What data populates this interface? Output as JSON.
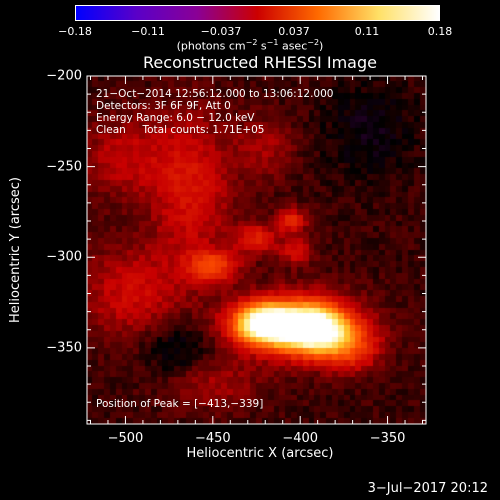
{
  "colorbar": {
    "ticks": [
      "−0.18",
      "−0.11",
      "−0.037",
      "0.037",
      "0.11",
      "0.18"
    ],
    "units_prefix": "(photons cm",
    "units_exp1": "−2",
    "units_mid": " s",
    "units_exp2": "−1",
    "units_mid2": " asec",
    "units_exp3": "−2",
    "units_suffix": ")",
    "colors": [
      "#0000ff",
      "#5a00c8",
      "#8a0096",
      "#cc0000",
      "#ff6a00",
      "#ffe066",
      "#ffffff"
    ]
  },
  "annotations": {
    "line1": "21−Oct−2014 12:56:12.000 to 13:06:12.000",
    "line2": "Detectors: 3F 6F 9F, Att 0",
    "line3": "Energy Range: 6.0 − 12.0 keV",
    "line4": "Clean     Total counts: 1.71E+05",
    "peak": "Position of Peak = [−413,−339]"
  },
  "datestamp": "3−Jul−2017 20:12",
  "chart_data": {
    "type": "heatmap",
    "title": "Reconstructed RHESSI Image",
    "xlabel": "Heliocentric X (arcsec)",
    "ylabel": "Heliocentric Y (arcsec)",
    "xlim": [
      -522,
      -328
    ],
    "ylim": [
      -392,
      -200
    ],
    "x_ticks": [
      "−500",
      "−450",
      "−400",
      "−350"
    ],
    "x_tick_values": [
      -500,
      -450,
      -400,
      -350
    ],
    "y_ticks": [
      "−200",
      "−250",
      "−300",
      "−350"
    ],
    "y_tick_values": [
      -200,
      -250,
      -300,
      -350
    ],
    "color_range": [
      -0.18,
      0.18
    ],
    "peak": [
      -413,
      -339
    ],
    "sources": [
      {
        "x": -418,
        "y": -337,
        "sx": 12,
        "sy": 7,
        "amp": 0.18
      },
      {
        "x": -392,
        "y": -340,
        "sx": 12,
        "sy": 8,
        "amp": 0.17
      },
      {
        "x": -402,
        "y": -338,
        "sx": 24,
        "sy": 12,
        "amp": 0.07
      },
      {
        "x": -372,
        "y": -350,
        "sx": 12,
        "sy": 9,
        "amp": 0.05
      },
      {
        "x": -450,
        "y": -305,
        "sx": 10,
        "sy": 6,
        "amp": 0.055
      },
      {
        "x": -425,
        "y": -290,
        "sx": 8,
        "sy": 6,
        "amp": 0.04
      },
      {
        "x": -405,
        "y": -280,
        "sx": 6,
        "sy": 5,
        "amp": 0.045
      },
      {
        "x": -402,
        "y": -297,
        "sx": 7,
        "sy": 5,
        "amp": 0.035
      },
      {
        "x": -462,
        "y": -262,
        "sx": 16,
        "sy": 28,
        "amp": 0.035
      },
      {
        "x": -495,
        "y": -320,
        "sx": 22,
        "sy": 18,
        "amp": 0.03
      },
      {
        "x": -500,
        "y": -245,
        "sx": 18,
        "sy": 16,
        "amp": 0.025
      },
      {
        "x": -420,
        "y": -240,
        "sx": 12,
        "sy": 12,
        "amp": 0.02
      },
      {
        "x": -450,
        "y": -370,
        "sx": 20,
        "sy": 10,
        "amp": 0.02
      }
    ],
    "background": 0.01,
    "negative_regions": [
      {
        "x": -470,
        "y": -350,
        "sx": 14,
        "sy": 12,
        "amp": -0.02
      },
      {
        "x": -360,
        "y": -230,
        "sx": 18,
        "sy": 18,
        "amp": -0.015
      }
    ]
  }
}
